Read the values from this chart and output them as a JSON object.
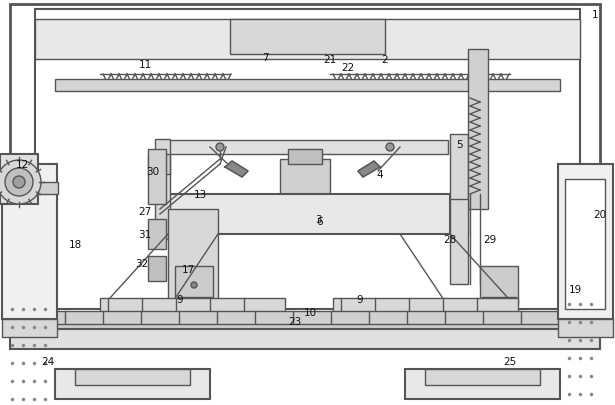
{
  "figure_width": 6.15,
  "figure_height": 4.06,
  "dpi": 100,
  "bg_color": "#ffffff",
  "lc": "#555555",
  "lc2": "#333333"
}
